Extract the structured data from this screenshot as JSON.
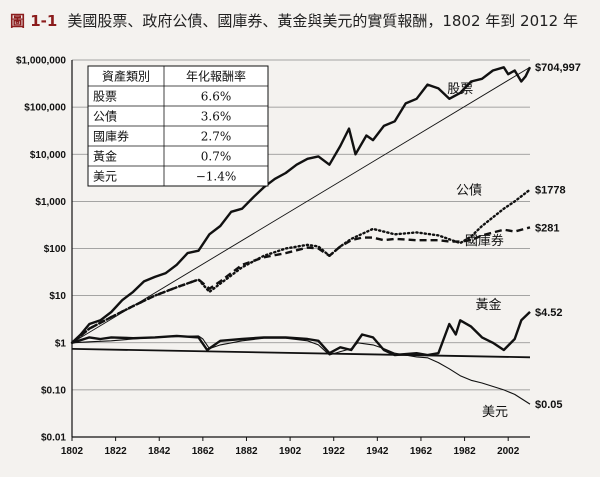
{
  "figure": {
    "label": "圖 1-1",
    "title": "美國股票、政府公債、國庫券、黃金與美元的實質報酬，1802 年到 2012 年"
  },
  "chart_data": {
    "type": "line",
    "x_scale": "linear",
    "y_scale": "log",
    "xlim": [
      1802,
      2012
    ],
    "ylim": [
      0.01,
      1000000
    ],
    "x_ticks": [
      "1802",
      "1822",
      "1842",
      "1862",
      "1882",
      "1902",
      "1922",
      "1942",
      "1962",
      "1982",
      "2002"
    ],
    "y_ticks": [
      "$1,000,000",
      "$100,000",
      "$10,000",
      "$1,000",
      "$100",
      "$10",
      "$1",
      "$0.10",
      "$0.01"
    ],
    "grid": "horizontal",
    "series": [
      {
        "name": "股票",
        "end_label": "$704,997",
        "style": "solid-thick",
        "x": [
          1802,
          1806,
          1810,
          1815,
          1820,
          1825,
          1830,
          1835,
          1840,
          1845,
          1850,
          1855,
          1860,
          1865,
          1870,
          1875,
          1880,
          1885,
          1890,
          1895,
          1900,
          1905,
          1910,
          1915,
          1920,
          1925,
          1929,
          1932,
          1937,
          1940,
          1945,
          1950,
          1955,
          1960,
          1965,
          1970,
          1975,
          1980,
          1985,
          1990,
          1995,
          2000,
          2002,
          2005,
          2008,
          2010,
          2012
        ],
        "y": [
          1,
          1.5,
          2.5,
          3,
          4.5,
          8,
          12,
          20,
          25,
          30,
          45,
          80,
          90,
          200,
          300,
          600,
          700,
          1200,
          2000,
          3000,
          4000,
          6000,
          8000,
          9000,
          6000,
          15000,
          35000,
          10000,
          25000,
          20000,
          40000,
          50000,
          120000,
          150000,
          300000,
          250000,
          150000,
          200000,
          350000,
          400000,
          600000,
          700000,
          500000,
          600000,
          350000,
          450000,
          704997
        ]
      },
      {
        "name": "公債",
        "end_label": "$1778",
        "style": "dotted",
        "x": [
          1802,
          1810,
          1820,
          1830,
          1840,
          1850,
          1860,
          1865,
          1870,
          1880,
          1890,
          1900,
          1910,
          1915,
          1920,
          1925,
          1930,
          1940,
          1950,
          1960,
          1970,
          1980,
          1985,
          1990,
          2000,
          2005,
          2012
        ],
        "y": [
          1,
          2,
          3.5,
          6,
          10,
          15,
          22,
          12,
          18,
          40,
          70,
          100,
          120,
          110,
          70,
          110,
          160,
          260,
          200,
          220,
          190,
          130,
          180,
          300,
          700,
          1000,
          1778
        ]
      },
      {
        "name": "國庫券",
        "end_label": "$281",
        "style": "dashed",
        "x": [
          1802,
          1810,
          1820,
          1830,
          1840,
          1850,
          1860,
          1865,
          1870,
          1880,
          1890,
          1900,
          1910,
          1915,
          1920,
          1925,
          1930,
          1935,
          1940,
          1945,
          1950,
          1960,
          1970,
          1975,
          1980,
          1985,
          1990,
          2000,
          2005,
          2012
        ],
        "y": [
          1,
          2,
          3.5,
          6,
          10,
          15,
          22,
          14,
          20,
          45,
          65,
          80,
          105,
          100,
          70,
          110,
          150,
          170,
          170,
          150,
          160,
          150,
          150,
          140,
          140,
          150,
          190,
          250,
          230,
          281
        ]
      },
      {
        "name": "黃金",
        "end_label": "$4.52",
        "style": "solid-thick",
        "x": [
          1802,
          1805,
          1810,
          1815,
          1820,
          1830,
          1840,
          1850,
          1860,
          1864,
          1870,
          1880,
          1890,
          1900,
          1910,
          1915,
          1920,
          1925,
          1930,
          1935,
          1940,
          1945,
          1950,
          1960,
          1965,
          1970,
          1975,
          1978,
          1980,
          1985,
          1990,
          1995,
          2000,
          2005,
          2008,
          2012
        ],
        "y": [
          1,
          1.1,
          1.3,
          1.2,
          1.3,
          1.25,
          1.3,
          1.4,
          1.3,
          0.7,
          1.1,
          1.2,
          1.3,
          1.3,
          1.2,
          1.1,
          0.6,
          0.8,
          0.7,
          1.5,
          1.3,
          0.7,
          0.55,
          0.6,
          0.55,
          0.6,
          2.5,
          1.5,
          3,
          2.2,
          1.3,
          1,
          0.7,
          1.2,
          3,
          4.52
        ]
      },
      {
        "name": "美元",
        "end_label": "$0.05",
        "style": "solid-thin",
        "x": [
          1802,
          1810,
          1820,
          1830,
          1840,
          1850,
          1860,
          1862,
          1865,
          1870,
          1880,
          1890,
          1900,
          1910,
          1915,
          1920,
          1925,
          1930,
          1933,
          1940,
          1945,
          1950,
          1960,
          1965,
          1970,
          1975,
          1980,
          1985,
          1990,
          2000,
          2005,
          2012
        ],
        "y": [
          1,
          1.05,
          1.1,
          1.2,
          1.3,
          1.35,
          1.4,
          1.2,
          0.75,
          0.9,
          1.1,
          1.25,
          1.25,
          1.1,
          0.9,
          0.55,
          0.65,
          0.75,
          1,
          0.9,
          0.75,
          0.6,
          0.5,
          0.48,
          0.38,
          0.28,
          0.2,
          0.16,
          0.14,
          0.1,
          0.08,
          0.05
        ]
      },
      {
        "name": "",
        "style": "trend",
        "x": [
          1802,
          2012
        ],
        "y": [
          1,
          704997
        ]
      },
      {
        "name": "",
        "style": "trend-flat",
        "x": [
          1802,
          2012
        ],
        "y": [
          0.74,
          0.49
        ]
      }
    ],
    "table": {
      "headers": [
        "資產類別",
        "年化報酬率"
      ],
      "rows": [
        [
          "股票",
          "6.6%"
        ],
        [
          "公債",
          "3.6%"
        ],
        [
          "國庫券",
          "2.7%"
        ],
        [
          "黃金",
          "0.7%"
        ],
        [
          "美元",
          "−1.4%"
        ]
      ]
    }
  }
}
